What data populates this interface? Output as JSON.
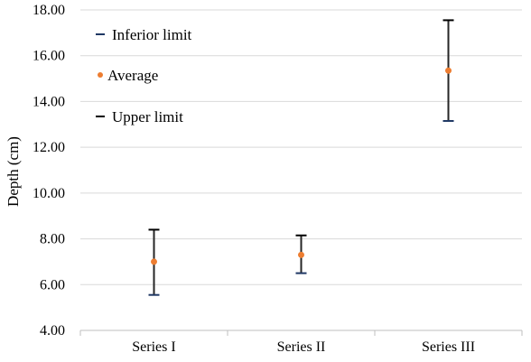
{
  "chart_data": {
    "type": "scatter",
    "categories": [
      "Series I",
      "Series II",
      "Series III"
    ],
    "series": [
      {
        "name": "Inferior limit",
        "values": [
          5.55,
          6.5,
          13.15
        ],
        "color": "#1f3864"
      },
      {
        "name": "Average",
        "values": [
          7.0,
          7.3,
          15.35
        ],
        "color": "#ed7d31"
      },
      {
        "name": "Upper limit",
        "values": [
          8.4,
          8.15,
          17.55
        ],
        "color": "#000000"
      }
    ],
    "ylabel": "Depth (cm)",
    "xlabel": "",
    "title": "",
    "ylim": [
      4,
      18
    ],
    "yticks": [
      "4.00",
      "6.00",
      "8.00",
      "10.00",
      "12.00",
      "14.00",
      "16.00",
      "18.00"
    ],
    "grid": true,
    "legend_position": "top-left"
  }
}
